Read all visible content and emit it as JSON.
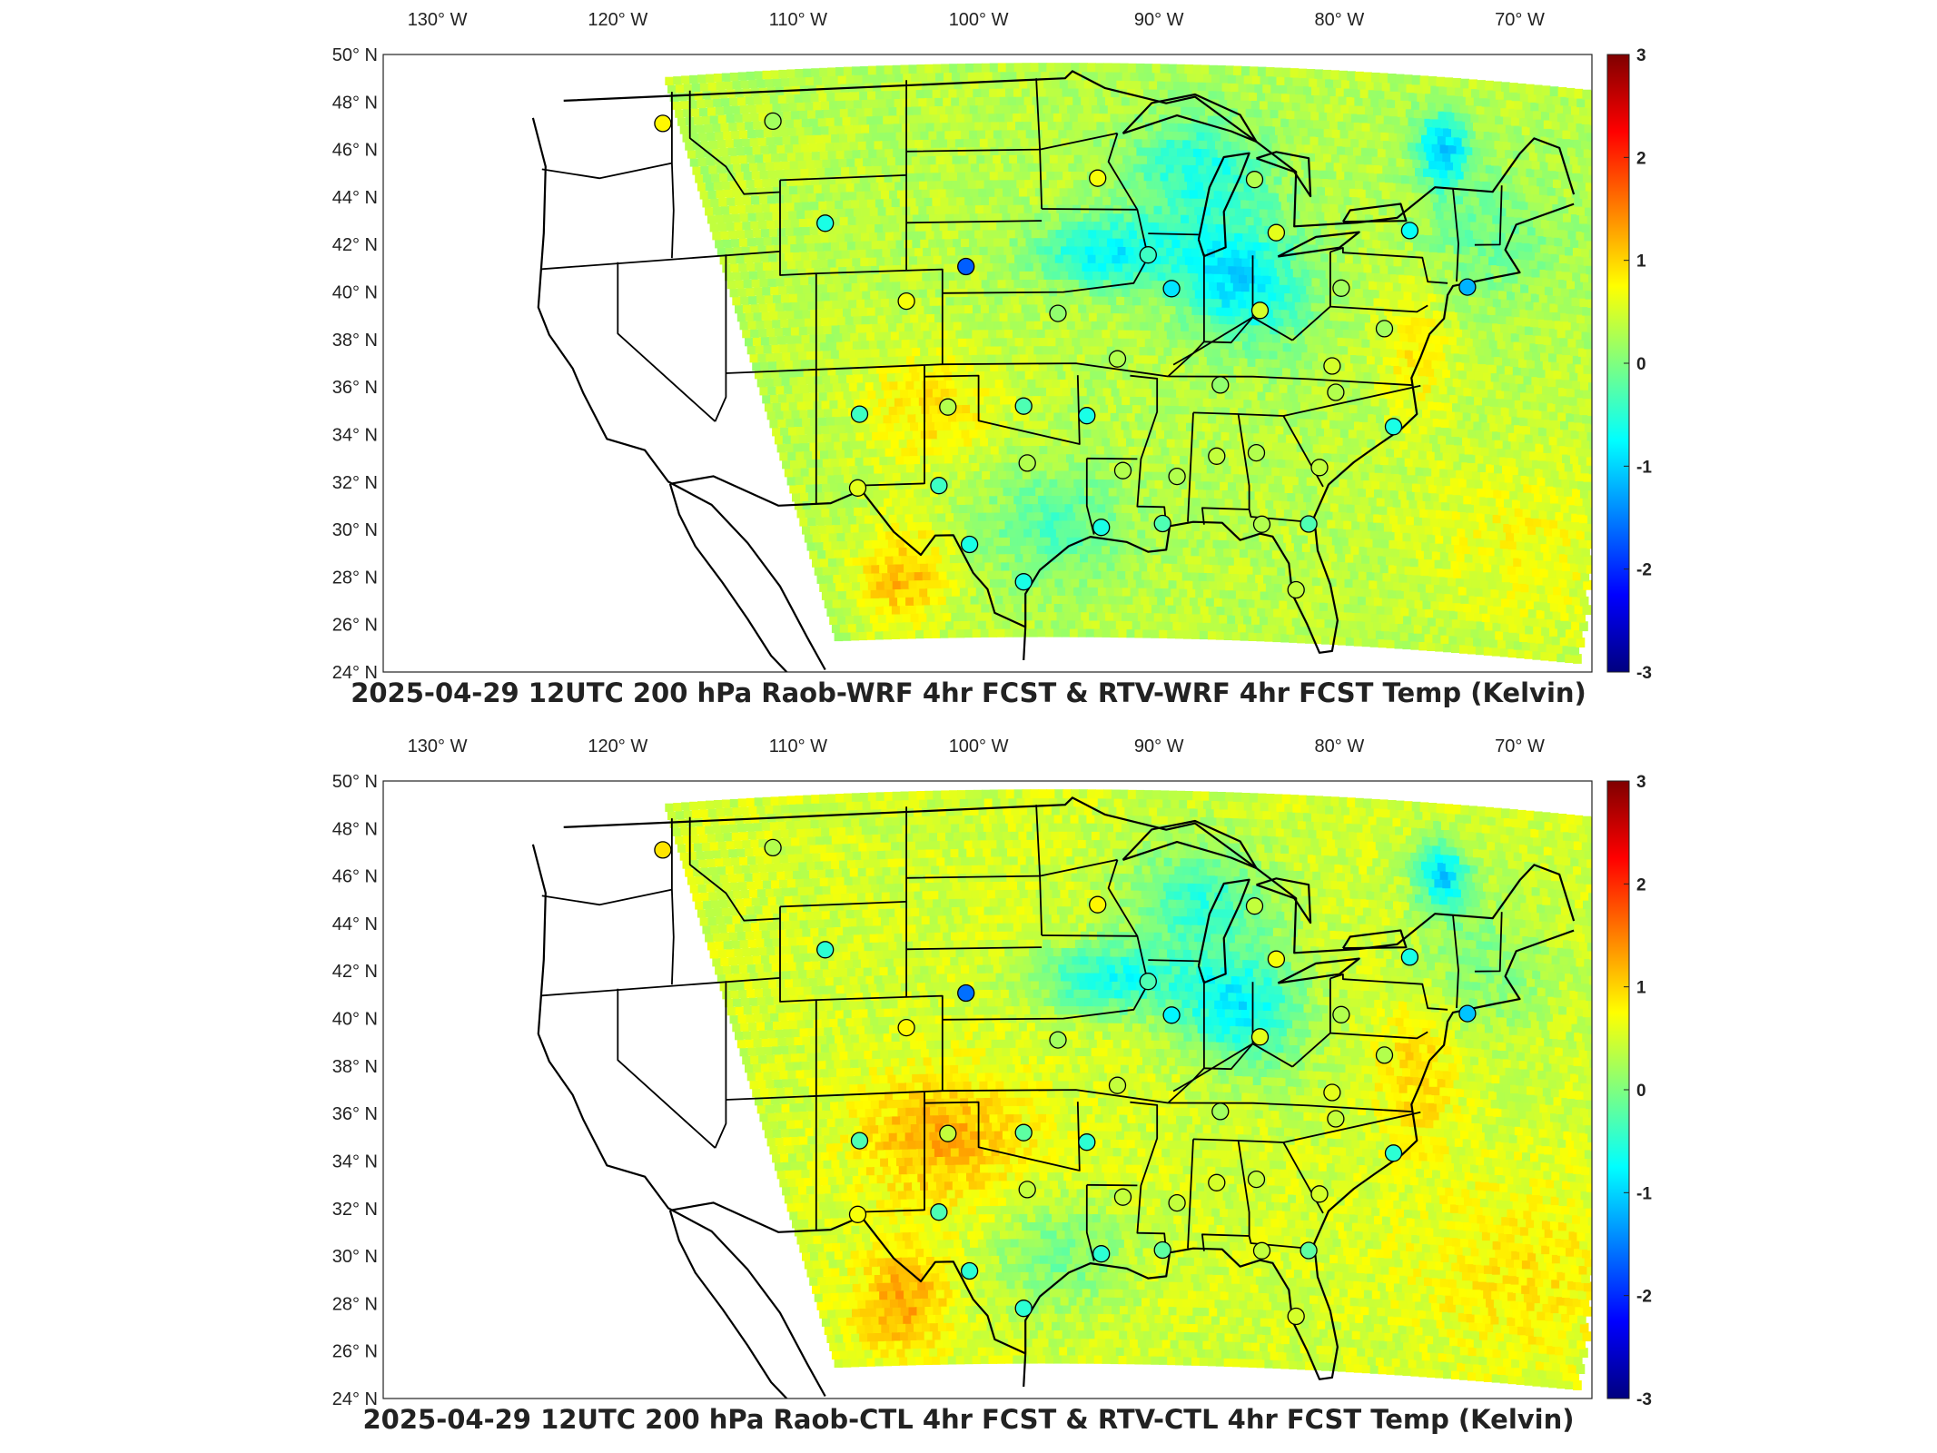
{
  "panels": [
    {
      "id": "wrf",
      "title": "2025-04-29 12UTC 200 hPa Raob-WRF 4hr FCST & RTV-WRF 4hr FCST Temp (Kelvin)",
      "longitude_labels": [
        "130° W",
        "120° W",
        "110° W",
        "100° W",
        "90° W",
        "80° W",
        "70° W"
      ],
      "latitude_labels": [
        "50° N",
        "48° N",
        "46° N",
        "44° N",
        "42° N",
        "40° N",
        "38° N",
        "36° N",
        "34° N",
        "32° N",
        "30° N",
        "28° N",
        "26° N",
        "24° N"
      ],
      "colorbar": {
        "ticks": [
          "3",
          "2",
          "1",
          "0",
          "-1",
          "-2",
          "-3"
        ]
      }
    },
    {
      "id": "ctl",
      "title": "2025-04-29 12UTC 200 hPa Raob-CTL 4hr FCST & RTV-CTL 4hr FCST Temp (Kelvin)",
      "longitude_labels": [
        "130° W",
        "120° W",
        "110° W",
        "100° W",
        "90° W",
        "80° W",
        "70° W"
      ],
      "latitude_labels": [
        "50° N",
        "48° N",
        "46° N",
        "44° N",
        "42° N",
        "40° N",
        "38° N",
        "36° N",
        "34° N",
        "32° N",
        "30° N",
        "28° N",
        "26° N",
        "24° N"
      ],
      "colorbar": {
        "ticks": [
          "3",
          "2",
          "1",
          "0",
          "-1",
          "-2",
          "-3"
        ]
      }
    }
  ],
  "map_data": {
    "projection": "conic",
    "extent": {
      "lon": [
        -133,
        -66
      ],
      "lat": [
        24,
        50
      ]
    },
    "variable": "200 hPa Temperature difference (Kelvin)",
    "colormap": "jet",
    "color_range": [
      -3,
      3
    ],
    "colorbar_colors": [
      "#00007f",
      "#0000ff",
      "#007fff",
      "#00ffff",
      "#7fff7f",
      "#ffff00",
      "#ff7f00",
      "#ff0000",
      "#7f0000"
    ],
    "raob_stations": [
      {
        "lon": -117.5,
        "lat": 47.7,
        "value": 0.8
      },
      {
        "lon": -111.4,
        "lat": 47.5,
        "value": 0.2
      },
      {
        "lon": -108.5,
        "lat": 43.1,
        "value": -0.6
      },
      {
        "lon": -100.7,
        "lat": 41.1,
        "value": -1.7
      },
      {
        "lon": -104.0,
        "lat": 39.7,
        "value": 0.7
      },
      {
        "lon": -95.6,
        "lat": 39.1,
        "value": 0.1
      },
      {
        "lon": -93.4,
        "lat": 44.8,
        "value": 0.7
      },
      {
        "lon": -90.6,
        "lat": 41.6,
        "value": -0.4
      },
      {
        "lon": -89.3,
        "lat": 40.2,
        "value": -0.9
      },
      {
        "lon": -84.7,
        "lat": 44.9,
        "value": 0.3
      },
      {
        "lon": -83.5,
        "lat": 42.7,
        "value": 0.6
      },
      {
        "lon": -84.4,
        "lat": 39.4,
        "value": 0.5
      },
      {
        "lon": -79.9,
        "lat": 40.5,
        "value": 0.2
      },
      {
        "lon": -76.1,
        "lat": 43.1,
        "value": -0.7
      },
      {
        "lon": -72.9,
        "lat": 40.9,
        "value": -1.2
      },
      {
        "lon": -77.5,
        "lat": 38.9,
        "value": 0.2
      },
      {
        "lon": -80.4,
        "lat": 37.2,
        "value": 0.5
      },
      {
        "lon": -86.6,
        "lat": 36.2,
        "value": 0.1
      },
      {
        "lon": -80.2,
        "lat": 36.1,
        "value": 0.3
      },
      {
        "lon": -77.0,
        "lat": 34.8,
        "value": -0.6
      },
      {
        "lon": -92.3,
        "lat": 37.2,
        "value": 0.3
      },
      {
        "lon": -97.5,
        "lat": 35.2,
        "value": -0.3
      },
      {
        "lon": -94.0,
        "lat": 34.8,
        "value": -0.6
      },
      {
        "lon": -101.7,
        "lat": 35.2,
        "value": 0.3
      },
      {
        "lon": -106.6,
        "lat": 35.0,
        "value": -0.4
      },
      {
        "lon": -97.3,
        "lat": 32.8,
        "value": 0.3
      },
      {
        "lon": -102.2,
        "lat": 31.9,
        "value": -0.4
      },
      {
        "lon": -106.7,
        "lat": 31.9,
        "value": 0.6
      },
      {
        "lon": -92.0,
        "lat": 32.5,
        "value": 0.3
      },
      {
        "lon": -89.0,
        "lat": 32.3,
        "value": 0.3
      },
      {
        "lon": -86.8,
        "lat": 33.2,
        "value": 0.4
      },
      {
        "lon": -84.6,
        "lat": 33.4,
        "value": 0.3
      },
      {
        "lon": -81.1,
        "lat": 32.9,
        "value": 0.4
      },
      {
        "lon": -93.2,
        "lat": 30.1,
        "value": -0.6
      },
      {
        "lon": -89.8,
        "lat": 30.3,
        "value": -0.3
      },
      {
        "lon": -84.3,
        "lat": 30.4,
        "value": 0.3
      },
      {
        "lon": -81.7,
        "lat": 30.5,
        "value": -0.3
      },
      {
        "lon": -100.5,
        "lat": 29.4,
        "value": -0.6
      },
      {
        "lon": -97.5,
        "lat": 27.8,
        "value": -0.6
      },
      {
        "lon": -82.4,
        "lat": 27.7,
        "value": 0.4
      }
    ]
  }
}
